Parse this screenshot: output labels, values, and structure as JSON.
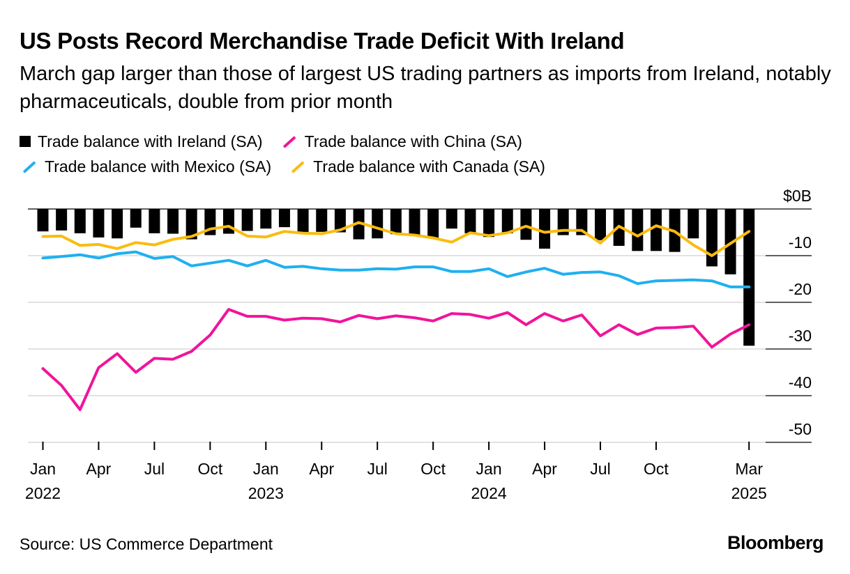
{
  "chart_data": {
    "type": "bar+line",
    "title": "US Posts Record Merchandise Trade Deficit With Ireland",
    "subtitle": "March gap larger than those of largest US trading partners as imports from Ireland, notably pharmaceuticals, double from prior month",
    "x_ticks": [
      {
        "label": "Jan",
        "year": "2022",
        "index": 0
      },
      {
        "label": "Apr",
        "year": "",
        "index": 3
      },
      {
        "label": "Jul",
        "year": "",
        "index": 6
      },
      {
        "label": "Oct",
        "year": "",
        "index": 9
      },
      {
        "label": "Jan",
        "year": "2023",
        "index": 12
      },
      {
        "label": "Apr",
        "year": "",
        "index": 15
      },
      {
        "label": "Jul",
        "year": "",
        "index": 18
      },
      {
        "label": "Oct",
        "year": "",
        "index": 21
      },
      {
        "label": "Jan",
        "year": "2024",
        "index": 24
      },
      {
        "label": "Apr",
        "year": "",
        "index": 27
      },
      {
        "label": "Jul",
        "year": "",
        "index": 30
      },
      {
        "label": "Oct",
        "year": "",
        "index": 33
      },
      {
        "label": "Mar",
        "year": "2025",
        "index": 38
      }
    ],
    "y_ticks": [
      {
        "value": 0,
        "label": "$0B"
      },
      {
        "value": -10,
        "label": "-10"
      },
      {
        "value": -20,
        "label": "-20"
      },
      {
        "value": -30,
        "label": "-30"
      },
      {
        "value": -40,
        "label": "-40"
      },
      {
        "value": -50,
        "label": "-50"
      }
    ],
    "ylim": [
      -50,
      0
    ],
    "series": [
      {
        "name": "Trade balance with Ireland (SA)",
        "kind": "bar",
        "color": "#000000",
        "values": [
          -4.8,
          -4.6,
          -5.2,
          -6.1,
          -6.3,
          -4.0,
          -5.2,
          -5.3,
          -6.5,
          -5.6,
          -5.3,
          -4.7,
          -4.2,
          -3.9,
          -5.0,
          -4.9,
          -5.0,
          -6.5,
          -6.3,
          -5.4,
          -5.7,
          -6.2,
          -4.2,
          -5.2,
          -6.0,
          -5.2,
          -6.6,
          -8.5,
          -5.6,
          -5.6,
          -6.7,
          -7.9,
          -9.0,
          -9.0,
          -9.2,
          -6.3,
          -12.3,
          -14.0,
          -29.3
        ]
      },
      {
        "name": "Trade balance with China (SA)",
        "kind": "line",
        "color": "#f0149b",
        "values": [
          -34.2,
          -37.8,
          -43.0,
          -34.0,
          -31.0,
          -35.0,
          -32.0,
          -32.2,
          -30.5,
          -27.0,
          -21.5,
          -23.0,
          -23.0,
          -23.8,
          -23.4,
          -23.5,
          -24.2,
          -22.8,
          -23.5,
          -22.9,
          -23.3,
          -24.0,
          -22.4,
          -22.6,
          -23.4,
          -22.2,
          -24.8,
          -22.4,
          -24.0,
          -22.7,
          -27.2,
          -24.8,
          -26.9,
          -25.5,
          -25.4,
          -25.1,
          -29.6,
          -26.8,
          -24.8
        ]
      },
      {
        "name": "Trade balance with Mexico (SA)",
        "kind": "line",
        "color": "#1fb0f0",
        "values": [
          -10.5,
          -10.2,
          -9.8,
          -10.5,
          -9.6,
          -9.2,
          -10.6,
          -10.2,
          -12.2,
          -11.6,
          -11.0,
          -12.2,
          -11.0,
          -12.5,
          -12.3,
          -12.8,
          -13.1,
          -13.1,
          -12.8,
          -12.9,
          -12.4,
          -12.4,
          -13.4,
          -13.4,
          -12.8,
          -14.5,
          -13.5,
          -12.7,
          -14.0,
          -13.6,
          -13.5,
          -14.3,
          -16.0,
          -15.4,
          -15.3,
          -15.2,
          -15.4,
          -16.7,
          -16.7
        ]
      },
      {
        "name": "Trade balance with Canada (SA)",
        "kind": "line",
        "color": "#fbbb0f",
        "values": [
          -5.9,
          -5.8,
          -7.8,
          -7.6,
          -8.5,
          -7.2,
          -7.7,
          -6.5,
          -5.9,
          -4.3,
          -3.7,
          -5.8,
          -6.0,
          -4.8,
          -5.2,
          -5.3,
          -4.5,
          -2.9,
          -4.1,
          -5.3,
          -5.6,
          -6.2,
          -7.1,
          -5.1,
          -5.7,
          -5.1,
          -3.7,
          -5.0,
          -4.6,
          -4.6,
          -7.3,
          -3.7,
          -5.8,
          -3.6,
          -4.8,
          -7.7,
          -10.0,
          -7.4,
          -4.8
        ]
      }
    ],
    "legend_position": "top-left"
  },
  "legend": {
    "ireland": "Trade balance with Ireland (SA)",
    "china": "Trade balance with China (SA)",
    "mexico": "Trade balance with Mexico (SA)",
    "canada": "Trade balance with Canada (SA)"
  },
  "colors": {
    "ireland": "#000000",
    "china": "#f0149b",
    "mexico": "#1fb0f0",
    "canada": "#fbbb0f",
    "grid": "#d9d9d9"
  },
  "source": "Source: US Commerce Department",
  "brand": "Bloomberg"
}
